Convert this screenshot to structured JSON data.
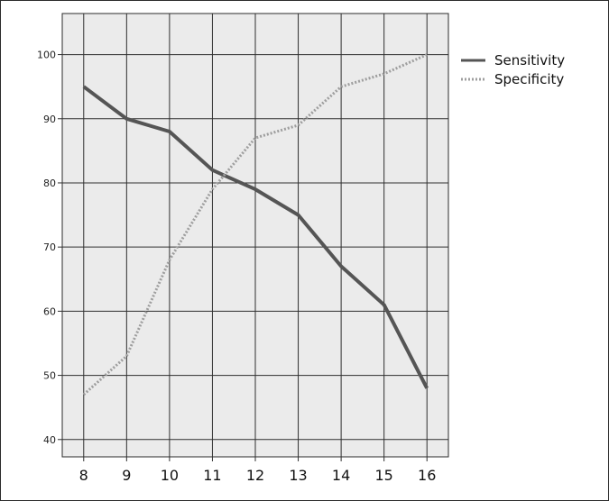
{
  "chart_data": {
    "type": "line",
    "x": [
      8,
      9,
      10,
      11,
      12,
      13,
      14,
      15,
      16
    ],
    "series": [
      {
        "name": "Sensitivity",
        "values": [
          95,
          90,
          88,
          82,
          79,
          75,
          67,
          61,
          48
        ],
        "color": "#555555",
        "style": "solid"
      },
      {
        "name": "Specificity",
        "values": [
          47,
          53,
          68,
          79,
          87,
          89,
          95,
          97,
          100
        ],
        "color": "#9e9e9e",
        "style": "dotted"
      }
    ],
    "xticks": [
      "8",
      "9",
      "10",
      "11",
      "12",
      "13",
      "14",
      "15",
      "16"
    ],
    "yticks": [
      "40",
      "50",
      "60",
      "70",
      "80",
      "90",
      "100"
    ],
    "xlim": [
      7.5,
      16.5
    ],
    "ylim": [
      37.3,
      106.4
    ],
    "grid": true,
    "legend": "top-right",
    "background": "#ebebeb"
  }
}
